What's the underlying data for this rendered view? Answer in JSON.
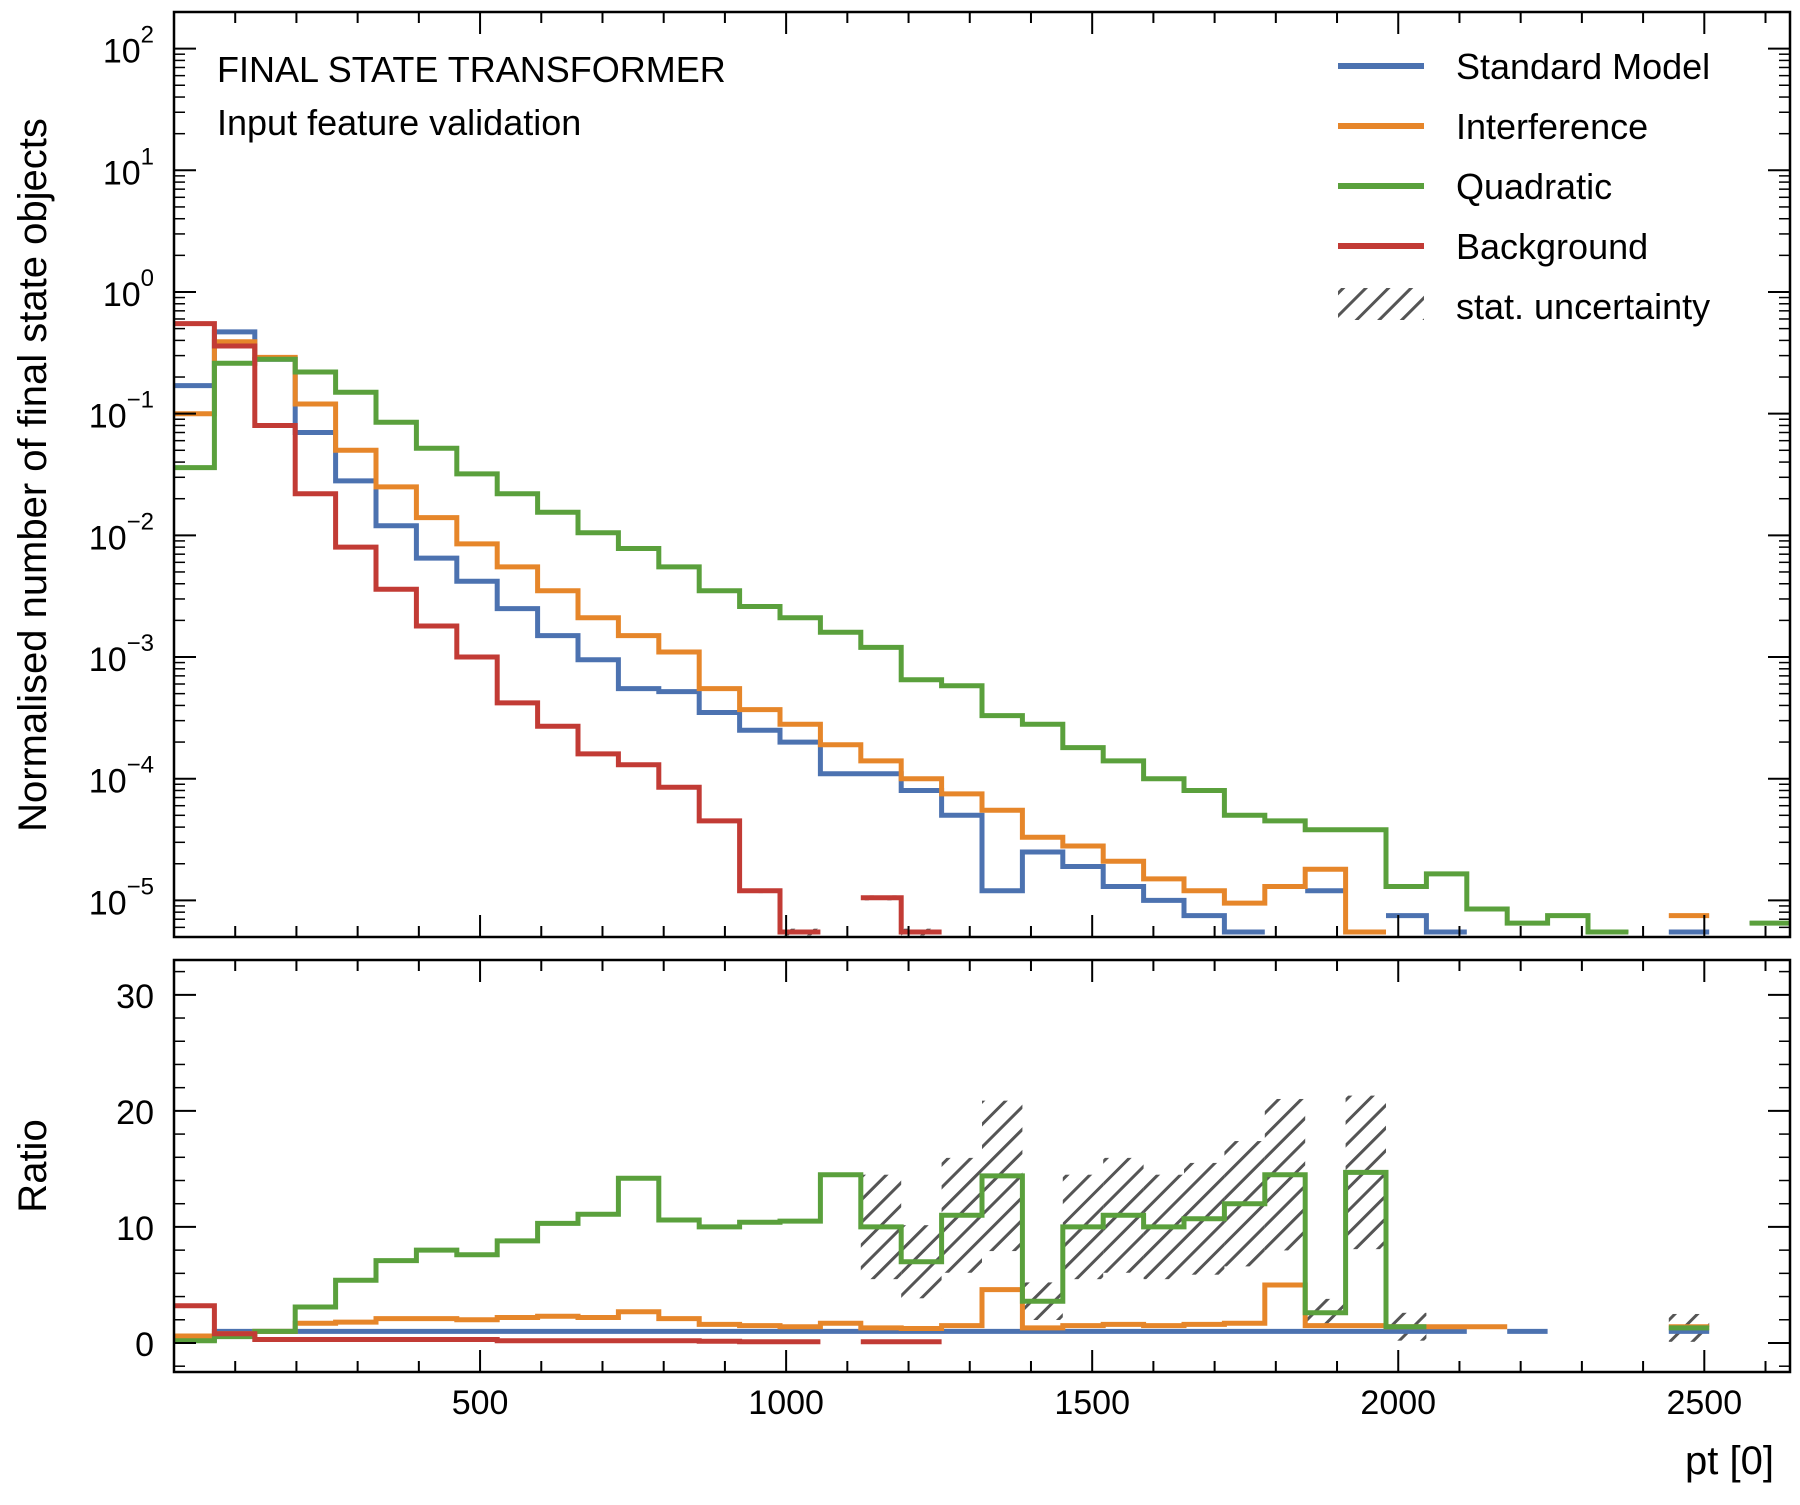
{
  "chart_data": {
    "type": "step-histogram-with-ratio",
    "annotation": {
      "title": "FINAL STATE TRANSFORMER",
      "subtitle": "Input feature validation"
    },
    "xlabel": "pt [0]",
    "xlim": [
      0,
      2640
    ],
    "x_ticks": [
      500,
      1000,
      1500,
      2000,
      2500
    ],
    "x_tick_labels": [
      "500",
      "1000",
      "1500",
      "2000",
      "2500"
    ],
    "bin_edges": [
      0,
      66,
      132,
      198,
      264,
      330,
      396,
      462,
      528,
      594,
      660,
      726,
      792,
      858,
      924,
      990,
      1056,
      1122,
      1188,
      1254,
      1320,
      1386,
      1452,
      1518,
      1584,
      1650,
      1716,
      1782,
      1848,
      1914,
      1980,
      2046,
      2112,
      2178,
      2244,
      2310,
      2376,
      2442,
      2508,
      2574,
      2640
    ],
    "main_panel": {
      "ylabel": "Normalised number of final state objects",
      "yscale": "log",
      "ylim": [
        5e-06,
        200
      ],
      "y_ticks": [
        1e-05,
        0.0001,
        0.001,
        0.01,
        0.1,
        1,
        10,
        100
      ],
      "y_tick_labels": [
        {
          "base": "10",
          "exp": "−5"
        },
        {
          "base": "10",
          "exp": "−4"
        },
        {
          "base": "10",
          "exp": "−3"
        },
        {
          "base": "10",
          "exp": "−2"
        },
        {
          "base": "10",
          "exp": "−1"
        },
        {
          "base": "10",
          "exp": "0"
        },
        {
          "base": "10",
          "exp": "1"
        },
        {
          "base": "10",
          "exp": "2"
        }
      ],
      "series": [
        {
          "name": "Standard Model",
          "color": "#4c72b0",
          "values": [
            0.17,
            0.47,
            0.28,
            0.07,
            0.028,
            0.012,
            0.0065,
            0.0042,
            0.0025,
            0.0015,
            0.00095,
            0.00055,
            0.00052,
            0.00035,
            0.00025,
            0.0002,
            0.00011,
            0.00011,
            8e-05,
            5e-05,
            1.2e-05,
            2.5e-05,
            1.9e-05,
            1.3e-05,
            1e-05,
            7.5e-06,
            5.5e-06,
            null,
            1.2e-05,
            null,
            7.5e-06,
            5.5e-06,
            null,
            null,
            null,
            null,
            null,
            5.5e-06,
            null,
            null
          ]
        },
        {
          "name": "Interference",
          "color": "#e6862a",
          "values": [
            0.1,
            0.39,
            0.29,
            0.12,
            0.05,
            0.025,
            0.014,
            0.0085,
            0.0055,
            0.0035,
            0.0021,
            0.0015,
            0.0011,
            0.00055,
            0.00037,
            0.00028,
            0.00019,
            0.00014,
            0.0001,
            7.5e-05,
            5.5e-05,
            3.3e-05,
            2.8e-05,
            2.1e-05,
            1.5e-05,
            1.2e-05,
            9.5e-06,
            1.3e-05,
            1.8e-05,
            5.5e-06,
            null,
            null,
            null,
            null,
            null,
            null,
            null,
            7.5e-06,
            null,
            null
          ]
        },
        {
          "name": "Quadratic",
          "color": "#5aa03c",
          "values": [
            0.036,
            0.26,
            0.28,
            0.22,
            0.15,
            0.085,
            0.052,
            0.032,
            0.022,
            0.0155,
            0.0105,
            0.0078,
            0.0055,
            0.0035,
            0.0026,
            0.0021,
            0.0016,
            0.0012,
            0.00065,
            0.00058,
            0.00033,
            0.00028,
            0.00018,
            0.00014,
            0.0001,
            8e-05,
            5e-05,
            4.5e-05,
            3.8e-05,
            3.8e-05,
            1.3e-05,
            1.65e-05,
            8.5e-06,
            6.5e-06,
            7.5e-06,
            5.5e-06,
            null,
            null,
            null,
            6.5e-06
          ]
        },
        {
          "name": "Background",
          "color": "#c23b35",
          "values": [
            0.55,
            0.36,
            0.08,
            0.022,
            0.008,
            0.0036,
            0.0018,
            0.001,
            0.00042,
            0.00027,
            0.00016,
            0.00013,
            8.5e-05,
            4.5e-05,
            1.2e-05,
            5.5e-06,
            null,
            1.05e-05,
            5.5e-06,
            null,
            null,
            null,
            null,
            null,
            null,
            null,
            null,
            null,
            null,
            null,
            null,
            null,
            null,
            null,
            null,
            null,
            null,
            null,
            null,
            null
          ]
        }
      ]
    },
    "ratio_panel": {
      "ylabel": "Ratio",
      "ylim": [
        -2.5,
        33
      ],
      "y_ticks": [
        0,
        10,
        20,
        30
      ],
      "y_tick_labels": [
        "0",
        "10",
        "20",
        "30"
      ],
      "series": [
        {
          "name": "Standard Model",
          "color": "#4c72b0",
          "values": [
            0.3,
            1.0,
            1.0,
            1.0,
            1.0,
            1.0,
            1.0,
            1.0,
            1.0,
            1.0,
            1.0,
            1.0,
            1.0,
            1.0,
            1.0,
            1.0,
            1.0,
            1.0,
            1.0,
            1.0,
            1.0,
            1.0,
            1.0,
            1.0,
            1.0,
            1.0,
            1.0,
            1.0,
            1.0,
            1.0,
            1.0,
            1.0,
            null,
            1.0,
            null,
            null,
            null,
            1.0,
            null,
            null
          ]
        },
        {
          "name": "Interference",
          "color": "#e6862a",
          "values": [
            0.6,
            0.8,
            1.0,
            1.7,
            1.8,
            2.1,
            2.1,
            2.0,
            2.2,
            2.3,
            2.2,
            2.7,
            2.1,
            1.6,
            1.5,
            1.4,
            1.7,
            1.3,
            1.25,
            1.5,
            4.6,
            1.3,
            1.5,
            1.6,
            1.5,
            1.6,
            1.7,
            5.0,
            1.5,
            1.5,
            1.4,
            1.4,
            1.4,
            null,
            null,
            null,
            null,
            1.4,
            null,
            null
          ]
        },
        {
          "name": "Quadratic",
          "color": "#5aa03c",
          "values": [
            0.2,
            0.55,
            1.0,
            3.1,
            5.4,
            7.1,
            8.0,
            7.6,
            8.8,
            10.3,
            11.1,
            14.2,
            10.6,
            10.0,
            10.4,
            10.5,
            14.5,
            10.0,
            7.0,
            11.0,
            14.4,
            3.6,
            10.0,
            11.0,
            10.0,
            10.7,
            12.0,
            14.5,
            2.6,
            14.7,
            1.4,
            null,
            null,
            null,
            null,
            null,
            null,
            1.3,
            null,
            null
          ]
        },
        {
          "name": "Background",
          "color": "#c23b35",
          "values": [
            3.2,
            0.8,
            0.3,
            0.3,
            0.3,
            0.3,
            0.3,
            0.3,
            0.2,
            0.2,
            0.2,
            0.2,
            0.2,
            0.15,
            0.1,
            0.1,
            null,
            0.1,
            0.1,
            null,
            null,
            null,
            null,
            null,
            null,
            null,
            null,
            null,
            null,
            null,
            null,
            null,
            null,
            null,
            null,
            null,
            null,
            null,
            null,
            null
          ]
        }
      ]
    },
    "legend": {
      "position": "top-right",
      "entries": [
        {
          "label": "Standard Model",
          "color": "#4c72b0",
          "style": "line"
        },
        {
          "label": "Interference",
          "color": "#e6862a",
          "style": "line"
        },
        {
          "label": "Quadratic",
          "color": "#5aa03c",
          "style": "line"
        },
        {
          "label": "Background",
          "color": "#c23b35",
          "style": "line"
        },
        {
          "label": "stat. uncertainty",
          "color": "#555555",
          "style": "hatch"
        }
      ]
    }
  }
}
